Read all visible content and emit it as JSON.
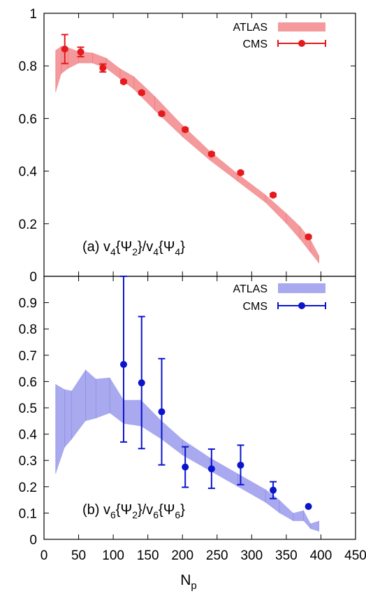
{
  "chart_data": [
    {
      "type": "line",
      "panel": "top",
      "ylim": [
        0,
        1
      ],
      "xlim": [
        0,
        450
      ],
      "y_ticks": [
        "0",
        "0.2",
        "0.4",
        "0.6",
        "0.8",
        "1"
      ],
      "grid": false,
      "legend_position": "top-right",
      "annotation": {
        "prefix": "(a) v",
        "sub1": "4",
        "mid1": "{Ψ",
        "sub2": "2",
        "mid2": "}/v",
        "sub3": "4",
        "mid3": "{Ψ",
        "sub4": "4",
        "suffix": "}"
      },
      "colors": {
        "band": "#f4999c",
        "band_edge": "#ee7a80",
        "points": "#e41a1c"
      },
      "series": [
        {
          "name": "ATLAS",
          "kind": "band",
          "x": [
            17,
            25,
            35,
            50,
            70,
            90,
            110,
            130,
            160,
            200,
            240,
            280,
            320,
            350,
            370,
            385,
            397
          ],
          "lower": [
            0.7,
            0.77,
            0.79,
            0.81,
            0.81,
            0.79,
            0.75,
            0.71,
            0.63,
            0.53,
            0.44,
            0.36,
            0.28,
            0.2,
            0.14,
            0.09,
            0.05
          ],
          "upper": [
            0.86,
            0.875,
            0.87,
            0.855,
            0.85,
            0.83,
            0.79,
            0.76,
            0.685,
            0.575,
            0.475,
            0.39,
            0.31,
            0.24,
            0.19,
            0.14,
            0.08
          ]
        },
        {
          "name": "CMS",
          "kind": "points",
          "x": [
            30,
            53,
            85,
            115,
            141,
            170,
            204,
            242,
            284,
            331,
            382
          ],
          "y": [
            0.864,
            0.853,
            0.792,
            0.74,
            0.698,
            0.618,
            0.558,
            0.465,
            0.394,
            0.309,
            0.15
          ],
          "yerr": [
            0.055,
            0.018,
            0.015,
            0.005,
            0.005,
            0.005,
            0.005,
            0.005,
            0.005,
            0.005,
            0.005
          ]
        }
      ]
    },
    {
      "type": "line",
      "panel": "bottom",
      "ylim": [
        0,
        1
      ],
      "xlim": [
        0,
        450
      ],
      "x_ticks": [
        "0",
        "50",
        "100",
        "150",
        "200",
        "250",
        "300",
        "350",
        "400",
        "450"
      ],
      "y_ticks": [
        "0",
        "0.1",
        "0.2",
        "0.3",
        "0.4",
        "0.5",
        "0.6",
        "0.7",
        "0.8",
        "0.9"
      ],
      "xlabel": {
        "base": "N",
        "sub": "p"
      },
      "grid": false,
      "legend_position": "top-right",
      "annotation": {
        "prefix": "(b) v",
        "sub1": "6",
        "mid1": "{Ψ",
        "sub2": "2",
        "mid2": "}/v",
        "sub3": "6",
        "mid3": "{Ψ",
        "sub4": "6",
        "suffix": "}"
      },
      "colors": {
        "band": "#a9a9ef",
        "band_edge": "#8d8de6",
        "points": "#0a14cc"
      },
      "series": [
        {
          "name": "ATLAS",
          "kind": "band",
          "x": [
            17,
            30,
            40,
            60,
            75,
            95,
            115,
            140,
            170,
            200,
            240,
            280,
            320,
            340,
            360,
            375,
            385,
            397
          ],
          "lower": [
            0.25,
            0.35,
            0.38,
            0.45,
            0.46,
            0.48,
            0.44,
            0.43,
            0.38,
            0.32,
            0.26,
            0.2,
            0.14,
            0.1,
            0.07,
            0.07,
            0.04,
            0.03
          ],
          "upper": [
            0.59,
            0.57,
            0.565,
            0.645,
            0.61,
            0.615,
            0.53,
            0.53,
            0.45,
            0.38,
            0.31,
            0.25,
            0.19,
            0.15,
            0.1,
            0.11,
            0.06,
            0.07
          ]
        },
        {
          "name": "CMS",
          "kind": "points",
          "x": [
            115,
            141,
            170,
            204,
            242,
            284,
            331,
            382
          ],
          "y": [
            0.665,
            0.595,
            0.485,
            0.275,
            0.268,
            0.282,
            0.187,
            0.125
          ],
          "ylow": [
            0.37,
            0.345,
            0.283,
            0.198,
            0.194,
            0.208,
            0.155,
            0.125
          ],
          "yhigh": [
            1.0,
            0.847,
            0.687,
            0.352,
            0.343,
            0.358,
            0.219,
            0.125
          ]
        }
      ]
    }
  ]
}
